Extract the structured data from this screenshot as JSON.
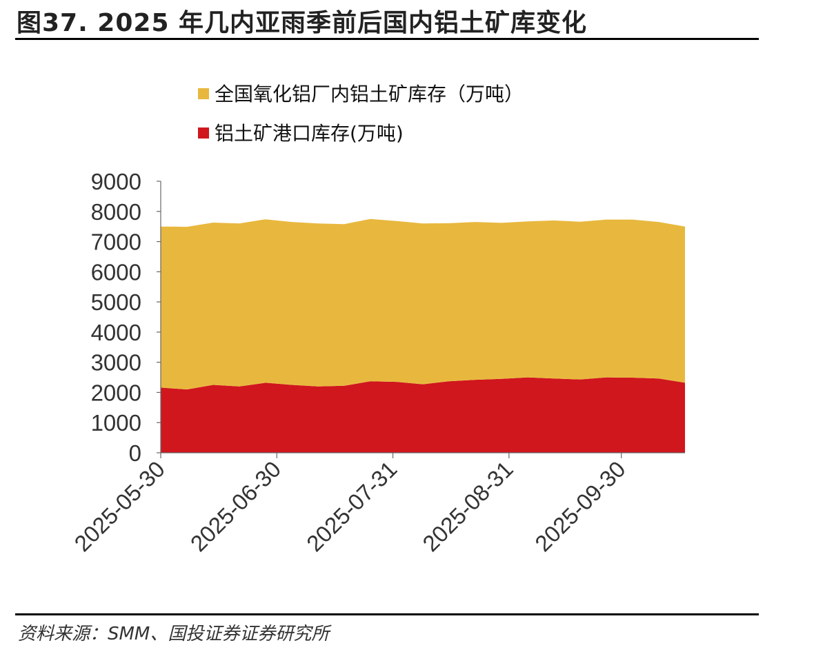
{
  "header": {
    "title": "图37. 2025 年几内亚雨季前后国内铝土矿库变化"
  },
  "footer": {
    "source": "资料来源：SMM、国投证券证券研究所"
  },
  "chart_data": {
    "type": "area",
    "stacked": true,
    "title": "图37. 2025 年几内亚雨季前后国内铝土矿库变化",
    "xlabel": "",
    "ylabel": "",
    "ylim": [
      0,
      9000
    ],
    "yticks": [
      0,
      1000,
      2000,
      3000,
      4000,
      5000,
      6000,
      7000,
      8000,
      9000
    ],
    "grid": false,
    "legend_position": "top",
    "x": [
      "2025-05-30",
      "2025-06-06",
      "2025-06-13",
      "2025-06-20",
      "2025-06-27",
      "2025-07-04",
      "2025-07-11",
      "2025-07-18",
      "2025-07-25",
      "2025-08-01",
      "2025-08-08",
      "2025-08-15",
      "2025-08-22",
      "2025-08-29",
      "2025-09-05",
      "2025-09-12",
      "2025-09-19",
      "2025-09-26",
      "2025-10-03",
      "2025-10-10",
      "2025-10-17"
    ],
    "xticks": [
      "2025-05-30",
      "2025-06-30",
      "2025-07-31",
      "2025-08-31",
      "2025-09-30"
    ],
    "series": [
      {
        "name": "铝土矿港口库存(万吨)",
        "color": "#D0171E",
        "values": [
          2160,
          2100,
          2250,
          2200,
          2320,
          2250,
          2200,
          2220,
          2370,
          2350,
          2270,
          2370,
          2420,
          2450,
          2500,
          2460,
          2430,
          2500,
          2490,
          2460,
          2320
        ]
      },
      {
        "name": "全国氧化铝厂内铝土矿库存（万吨）",
        "color": "#E8B83E",
        "values": [
          5340,
          5390,
          5380,
          5400,
          5420,
          5400,
          5400,
          5360,
          5380,
          5330,
          5330,
          5240,
          5230,
          5170,
          5170,
          5240,
          5230,
          5230,
          5240,
          5190,
          5180
        ]
      }
    ]
  }
}
